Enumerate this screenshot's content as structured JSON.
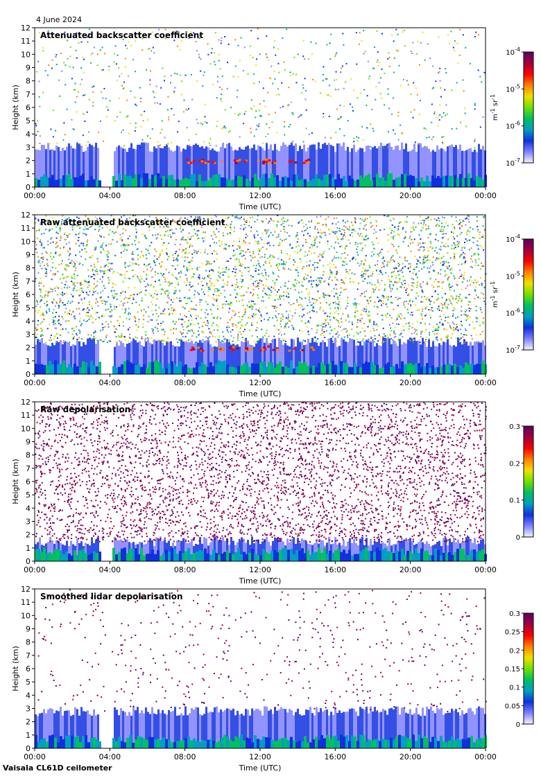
{
  "date": "4 June 2024",
  "footer": "Vaisala CL61D ceilometer",
  "colors": {
    "scale": [
      "#f4f4ff",
      "#8080ff",
      "#1030e0",
      "#00a0c0",
      "#00c060",
      "#70e000",
      "#f0e000",
      "#ff8000",
      "#ff0000",
      "#a00040",
      "#600060"
    ]
  },
  "chart_data": [
    {
      "type": "heatmap",
      "title": "Attenuated backscatter coefficient",
      "xlabel": "Time (UTC)",
      "ylabel": "Height (km)",
      "xticks": [
        "00:00",
        "04:00",
        "08:00",
        "12:00",
        "16:00",
        "20:00",
        "00:00"
      ],
      "yticks": [
        "0",
        "1",
        "2",
        "3",
        "4",
        "5",
        "6",
        "7",
        "8",
        "9",
        "10",
        "11",
        "12"
      ],
      "ylim": [
        0,
        12
      ],
      "xlim_hours": [
        0,
        24
      ],
      "colorbar": {
        "scale": "log",
        "min": 1e-07,
        "max": 0.0001,
        "ticks": [
          {
            "base": "10",
            "exp": "-4"
          },
          {
            "base": "10",
            "exp": "-5"
          },
          {
            "base": "10",
            "exp": "-6"
          },
          {
            "base": "10",
            "exp": "-7"
          }
        ],
        "unit": {
          "m": "m",
          "m_exp": "-1",
          "sr": "sr",
          "sr_exp": "-1"
        }
      },
      "features": {
        "boundary_layer_top_km": 3,
        "cloud_base_km": 2,
        "noise_density": 0.1,
        "gap_hours": [
          3.4,
          4.1
        ]
      }
    },
    {
      "type": "heatmap",
      "title": "Raw attenuated backscatter coefficient",
      "xlabel": "Time (UTC)",
      "ylabel": "Height (km)",
      "xticks": [
        "00:00",
        "04:00",
        "08:00",
        "12:00",
        "16:00",
        "20:00",
        "00:00"
      ],
      "yticks": [
        "0",
        "1",
        "2",
        "3",
        "4",
        "5",
        "6",
        "7",
        "8",
        "9",
        "10",
        "11",
        "12"
      ],
      "ylim": [
        0,
        12
      ],
      "xlim_hours": [
        0,
        24
      ],
      "colorbar": {
        "scale": "log",
        "min": 1e-07,
        "max": 0.0001,
        "ticks": [
          {
            "base": "10",
            "exp": "-4"
          },
          {
            "base": "10",
            "exp": "-5"
          },
          {
            "base": "10",
            "exp": "-6"
          },
          {
            "base": "10",
            "exp": "-7"
          }
        ],
        "unit": {
          "m": "m",
          "m_exp": "-1",
          "sr": "sr",
          "sr_exp": "-1"
        }
      },
      "features": {
        "boundary_layer_top_km": 2.4,
        "cloud_base_km": 2,
        "noise_density": 0.85,
        "gap_hours": [
          3.4,
          4.1
        ]
      }
    },
    {
      "type": "heatmap",
      "title": "Raw depolarisation",
      "xlabel": "Time (UTC)",
      "ylabel": "Height (km)",
      "xticks": [
        "00:00",
        "04:00",
        "08:00",
        "12:00",
        "16:00",
        "20:00",
        "00:00"
      ],
      "yticks": [
        "0",
        "1",
        "2",
        "3",
        "4",
        "5",
        "6",
        "7",
        "8",
        "9",
        "10",
        "11",
        "12"
      ],
      "ylim": [
        0,
        12
      ],
      "xlim_hours": [
        0,
        24
      ],
      "colorbar": {
        "scale": "linear",
        "min": 0,
        "max": 0.3,
        "ticks": [
          "0.3",
          "0.2",
          "0.1",
          "0"
        ]
      },
      "features": {
        "boundary_layer_top_km": 1.5,
        "noise_density": 0.95,
        "gap_hours": [
          3.4,
          4.1
        ]
      }
    },
    {
      "type": "heatmap",
      "title": "Smoothed lidar depolarisation",
      "xlabel": "Time (UTC)",
      "ylabel": "Height (km)",
      "xticks": [
        "00:00",
        "04:00",
        "08:00",
        "12:00",
        "16:00",
        "20:00",
        "00:00"
      ],
      "yticks": [
        "0",
        "1",
        "2",
        "3",
        "4",
        "5",
        "6",
        "7",
        "8",
        "9",
        "10",
        "11",
        "12"
      ],
      "ylim": [
        0,
        12
      ],
      "xlim_hours": [
        0,
        24
      ],
      "colorbar": {
        "scale": "linear",
        "min": 0,
        "max": 0.3,
        "ticks": [
          "0.3",
          "0.25",
          "0.2",
          "0.15",
          "0.1",
          "0.05",
          "0"
        ]
      },
      "features": {
        "boundary_layer_top_km": 2.8,
        "noise_density": 0.05,
        "gap_hours": [
          3.4,
          4.1
        ]
      }
    }
  ]
}
